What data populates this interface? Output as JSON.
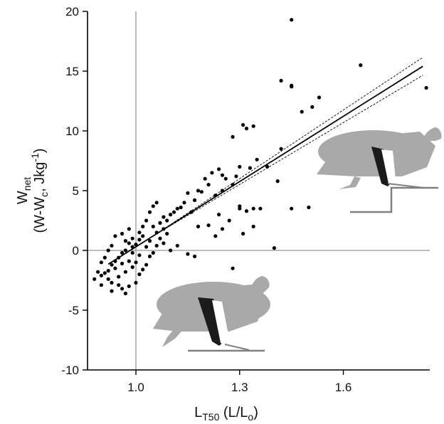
{
  "chart_data": {
    "type": "scatter",
    "x_axis": {
      "label_main": "L",
      "label_sub": "T50",
      "label_rest": " (L/L",
      "label_sub2": "o",
      "label_close": ")",
      "range": [
        0.86,
        1.85
      ],
      "ticks": [
        1.0,
        1.3,
        1.6
      ],
      "tick_labels": [
        "1.0",
        "1.3",
        "1.6"
      ]
    },
    "y_axis": {
      "label_main": "W",
      "label_sub": "net",
      "label_line2": "(W-W",
      "label_line2_sub": "c",
      "label_line2_rest": ", Jkg",
      "label_line2_sup": "-1",
      "label_line2_close": ")",
      "range": [
        -10,
        20
      ],
      "ticks": [
        -10,
        -5,
        0,
        5,
        10,
        15,
        20
      ],
      "tick_labels": [
        "-10",
        "-5",
        "0",
        "5",
        "10",
        "15",
        "20"
      ]
    },
    "reference_lines": {
      "x": 1.0,
      "y": 0
    },
    "regression": {
      "slope": 18.2,
      "intercept": -17.9,
      "x_range": [
        0.92,
        1.83
      ],
      "ci_band": 0.75
    },
    "points": [
      [
        1.45,
        19.3
      ],
      [
        1.65,
        15.5
      ],
      [
        1.84,
        13.6
      ],
      [
        1.45,
        13.7
      ],
      [
        1.45,
        13.8
      ],
      [
        1.42,
        14.2
      ],
      [
        1.53,
        12.8
      ],
      [
        1.51,
        12.0
      ],
      [
        1.48,
        11.6
      ],
      [
        1.31,
        10.5
      ],
      [
        1.34,
        10.4
      ],
      [
        1.32,
        10.2
      ],
      [
        1.28,
        9.5
      ],
      [
        1.42,
        8.5
      ],
      [
        1.38,
        7.0
      ],
      [
        1.35,
        7.6
      ],
      [
        1.33,
        6.9
      ],
      [
        1.3,
        7.0
      ],
      [
        1.29,
        6.2
      ],
      [
        1.26,
        6.0
      ],
      [
        1.24,
        6.8
      ],
      [
        1.22,
        6.5
      ],
      [
        1.25,
        6.3
      ],
      [
        1.2,
        6.0
      ],
      [
        1.21,
        5.5
      ],
      [
        1.25,
        5.0
      ],
      [
        1.28,
        5.5
      ],
      [
        1.23,
        4.6
      ],
      [
        1.19,
        4.9
      ],
      [
        1.18,
        5.0
      ],
      [
        1.15,
        4.8
      ],
      [
        1.17,
        4.2
      ],
      [
        1.14,
        4.0
      ],
      [
        1.13,
        3.6
      ],
      [
        1.16,
        3.2
      ],
      [
        1.12,
        3.5
      ],
      [
        1.11,
        3.2
      ],
      [
        1.1,
        3.0
      ],
      [
        1.09,
        2.5
      ],
      [
        1.08,
        2.8
      ],
      [
        1.24,
        3.0
      ],
      [
        1.3,
        3.7
      ],
      [
        1.3,
        3.5
      ],
      [
        1.34,
        3.5
      ],
      [
        1.32,
        3.3
      ],
      [
        1.36,
        3.5
      ],
      [
        1.41,
        5.8
      ],
      [
        1.45,
        3.5
      ],
      [
        1.5,
        3.6
      ],
      [
        1.34,
        2.0
      ],
      [
        1.31,
        1.4
      ],
      [
        1.27,
        2.5
      ],
      [
        1.25,
        1.8
      ],
      [
        1.23,
        1.2
      ],
      [
        1.21,
        2.1
      ],
      [
        1.18,
        2.0
      ],
      [
        1.17,
        -0.5
      ],
      [
        1.15,
        -0.3
      ],
      [
        1.12,
        0.4
      ],
      [
        1.1,
        0.0
      ],
      [
        1.4,
        0.2
      ],
      [
        1.28,
        -1.5
      ],
      [
        1.08,
        1.8
      ],
      [
        1.07,
        2.3
      ],
      [
        1.06,
        1.5
      ],
      [
        1.06,
        4.0
      ],
      [
        1.05,
        3.7
      ],
      [
        1.04,
        3.2
      ],
      [
        1.03,
        2.5
      ],
      [
        1.05,
        2.0
      ],
      [
        1.02,
        2.0
      ],
      [
        1.02,
        1.2
      ],
      [
        1.01,
        1.5
      ],
      [
        1.04,
        0.8
      ],
      [
        1.03,
        0.3
      ],
      [
        1.01,
        0.9
      ],
      [
        1.0,
        0.5
      ],
      [
        0.99,
        1.0
      ],
      [
        0.99,
        0.3
      ],
      [
        0.98,
        0.6
      ],
      [
        0.97,
        0.0
      ],
      [
        0.96,
        -0.2
      ],
      [
        0.95,
        -0.6
      ],
      [
        0.94,
        -0.9
      ],
      [
        0.93,
        -1.2
      ],
      [
        0.92,
        -1.7
      ],
      [
        0.91,
        -1.9
      ],
      [
        0.9,
        -2.1
      ],
      [
        0.92,
        -2.4
      ],
      [
        0.93,
        -2.7
      ],
      [
        0.95,
        -2.9
      ],
      [
        0.96,
        -3.2
      ],
      [
        0.98,
        -3.0
      ],
      [
        1.0,
        -2.7
      ],
      [
        1.01,
        -2.0
      ],
      [
        1.02,
        -1.6
      ],
      [
        1.03,
        -1.2
      ],
      [
        1.04,
        -0.5
      ],
      [
        1.0,
        -1.0
      ],
      [
        0.99,
        -1.4
      ],
      [
        0.98,
        -0.9
      ],
      [
        0.97,
        -1.8
      ],
      [
        0.96,
        -1.1
      ],
      [
        0.95,
        -2.2
      ],
      [
        0.94,
        -1.5
      ],
      [
        0.94,
        1.2
      ],
      [
        0.93,
        0.4
      ],
      [
        0.92,
        0.0
      ],
      [
        0.91,
        -0.6
      ],
      [
        0.9,
        -1.0
      ],
      [
        0.89,
        -1.8
      ],
      [
        0.88,
        -2.4
      ],
      [
        0.9,
        -2.9
      ],
      [
        0.93,
        -3.4
      ],
      [
        0.97,
        -3.6
      ],
      [
        1.06,
        0.4
      ],
      [
        1.07,
        1.0
      ],
      [
        1.08,
        0.6
      ],
      [
        1.09,
        1.4
      ],
      [
        1.05,
        -0.2
      ],
      [
        1.01,
        -0.4
      ],
      [
        0.99,
        -0.2
      ],
      [
        0.97,
        0.8
      ],
      [
        0.96,
        1.4
      ],
      [
        0.98,
        1.8
      ]
    ]
  }
}
